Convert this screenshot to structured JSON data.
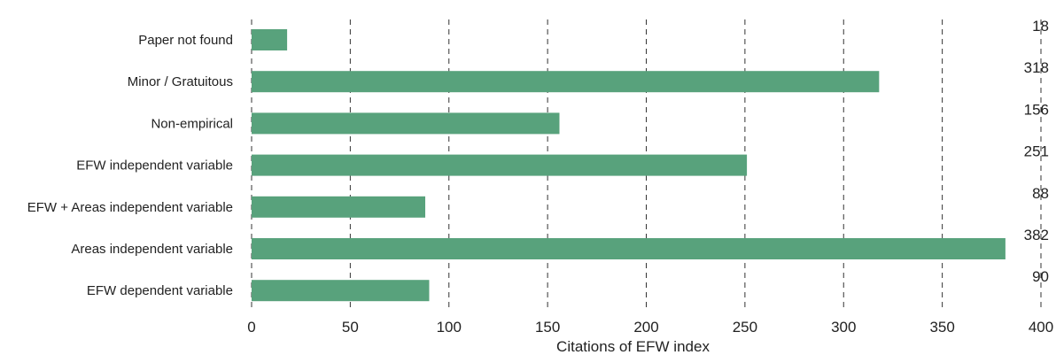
{
  "chart_data": {
    "type": "bar",
    "orientation": "horizontal",
    "categories": [
      "Paper not found",
      "Minor / Gratuitous",
      "Non-empirical",
      "EFW independent variable",
      "EFW + Areas independent variable",
      "Areas independent variable",
      "EFW dependent variable"
    ],
    "values": [
      18,
      318,
      156,
      251,
      88,
      382,
      90
    ],
    "xlabel": "Citations of EFW index",
    "ylabel": "",
    "title": "",
    "xlim": [
      0,
      400
    ],
    "xticks": [
      0,
      50,
      100,
      150,
      200,
      250,
      300,
      350,
      400
    ],
    "grid": "vertical dashed",
    "bar_color": "#58a27c"
  }
}
